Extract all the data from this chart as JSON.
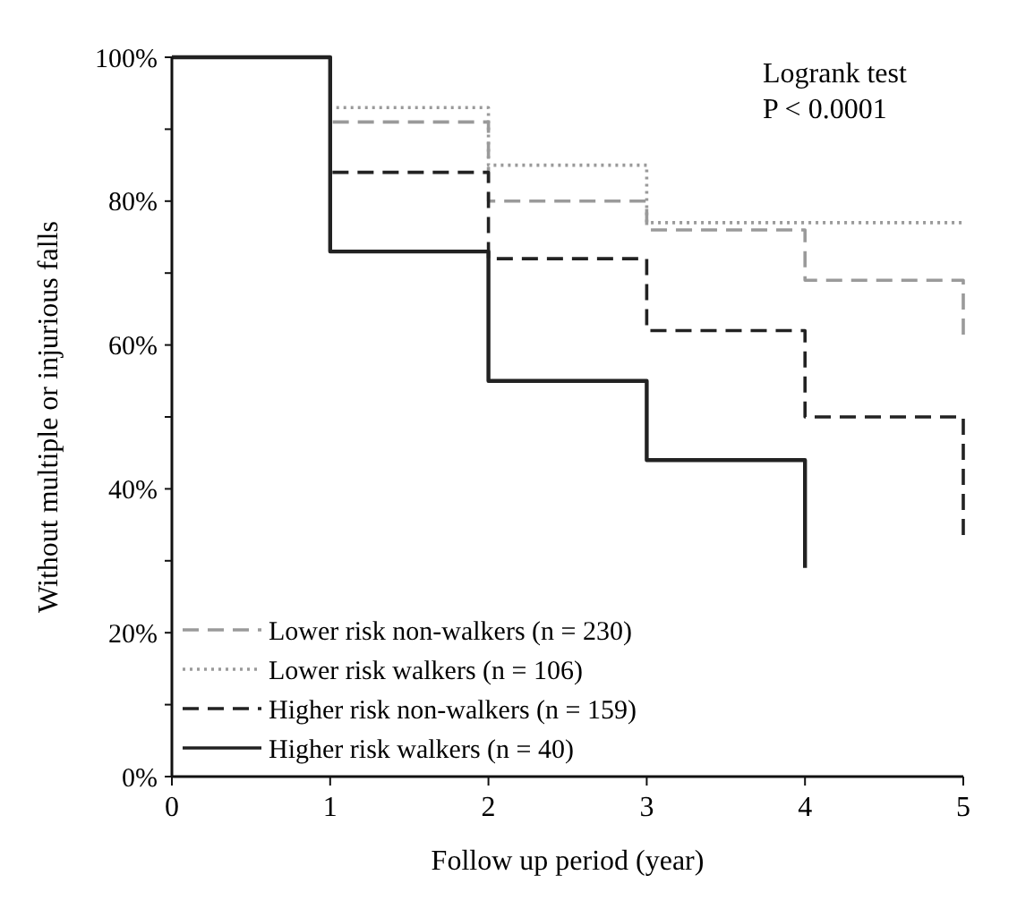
{
  "chart_data": {
    "type": "step",
    "xlabel": "Follow up period (year)",
    "ylabel": "Without multiple or injurious falls",
    "annotations": [
      "Logrank test",
      "P < 0.0001"
    ],
    "xlim": [
      0,
      5
    ],
    "xticks": [
      0,
      1,
      2,
      3,
      4,
      5
    ],
    "ylim": [
      0,
      100
    ],
    "yticks": [
      {
        "value": 0,
        "label": "0%"
      },
      {
        "value": 10,
        "label": null
      },
      {
        "value": 20,
        "label": "20%"
      },
      {
        "value": 30,
        "label": null
      },
      {
        "value": 40,
        "label": "40%"
      },
      {
        "value": 50,
        "label": null
      },
      {
        "value": 60,
        "label": "60%"
      },
      {
        "value": 70,
        "label": null
      },
      {
        "value": 80,
        "label": "80%"
      },
      {
        "value": 90,
        "label": null
      },
      {
        "value": 100,
        "label": "100%"
      }
    ],
    "legend": "bottom left",
    "grid": false,
    "series": [
      {
        "name": "Lower risk non-walkers (n = 230)",
        "color": "#9a9a9a",
        "line_style": "dashed",
        "x": [
          0,
          1,
          2,
          3,
          4,
          5
        ],
        "values": [
          100,
          91,
          80,
          76,
          69,
          61
        ]
      },
      {
        "name": "Lower risk walkers (n = 106)",
        "color": "#9a9a9a",
        "line_style": "dotted",
        "x": [
          0,
          1,
          2,
          3,
          5
        ],
        "values": [
          100,
          93,
          85,
          77,
          77
        ]
      },
      {
        "name": "Higher risk non-walkers (n = 159)",
        "color": "#222222",
        "line_style": "dashed",
        "x": [
          0,
          1,
          2,
          3,
          4,
          5
        ],
        "values": [
          100,
          84,
          72,
          62,
          50,
          33
        ]
      },
      {
        "name": "Higher risk walkers (n = 40)",
        "color": "#222222",
        "line_style": "solid",
        "x": [
          0,
          1,
          2,
          3,
          4
        ],
        "values": [
          100,
          73,
          55,
          44,
          29
        ]
      }
    ]
  }
}
